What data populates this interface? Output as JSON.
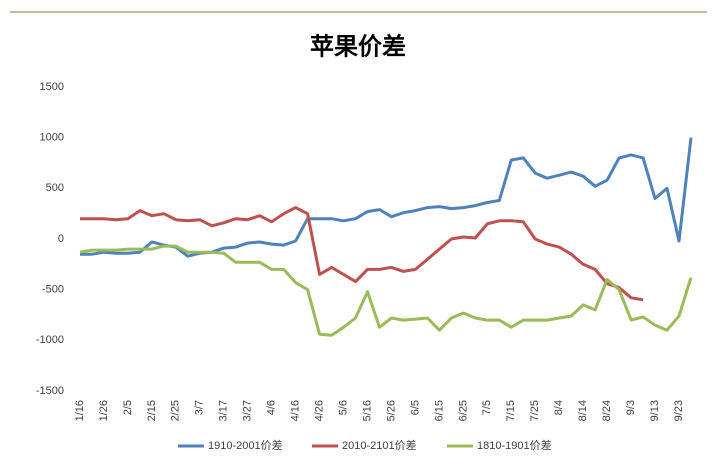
{
  "chart_data": {
    "type": "line",
    "title": "苹果价差",
    "categories": [
      "1/16",
      null,
      "1/26",
      null,
      "2/5",
      null,
      "2/15",
      null,
      "2/25",
      null,
      "3/7",
      null,
      "3/17",
      null,
      "3/27",
      null,
      "4/6",
      null,
      "4/16",
      null,
      "4/26",
      null,
      "5/6",
      null,
      "5/16",
      null,
      "5/26",
      null,
      "6/5",
      null,
      "6/15",
      null,
      "6/25",
      null,
      "7/5",
      null,
      "7/15",
      null,
      "7/25",
      null,
      "8/4",
      null,
      "8/14",
      null,
      "8/24",
      null,
      "9/3",
      null,
      "9/13",
      null,
      "9/23",
      null
    ],
    "series": [
      {
        "name": "1910-2001价差",
        "color": "#4f81bd",
        "values": [
          -150,
          -150,
          -130,
          -140,
          -140,
          -130,
          -30,
          -60,
          -80,
          -170,
          -140,
          -130,
          -90,
          -80,
          -40,
          -30,
          -50,
          -60,
          -20,
          200,
          200,
          200,
          180,
          200,
          270,
          290,
          220,
          260,
          280,
          310,
          320,
          300,
          310,
          330,
          360,
          380,
          780,
          800,
          650,
          600,
          630,
          660,
          620,
          520,
          580,
          800,
          830,
          800,
          400,
          500,
          -20,
          1000
        ]
      },
      {
        "name": "2010-2101价差",
        "color": "#c0504d",
        "values": [
          200,
          200,
          200,
          190,
          200,
          280,
          230,
          250,
          190,
          180,
          190,
          130,
          160,
          200,
          190,
          230,
          170,
          250,
          310,
          250,
          -350,
          -280,
          -350,
          -420,
          -300,
          -300,
          -280,
          -320,
          -300,
          -200,
          -100,
          0,
          20,
          10,
          150,
          180,
          180,
          170,
          0,
          -50,
          -80,
          -150,
          -250,
          -300,
          -440,
          -480,
          -580,
          -600,
          null,
          null,
          null,
          null
        ]
      },
      {
        "name": "1810-1901价差",
        "color": "#9bbb59",
        "values": [
          -130,
          -110,
          -110,
          -110,
          -100,
          -100,
          -100,
          -70,
          -70,
          -130,
          -130,
          -130,
          -140,
          -230,
          -230,
          -230,
          -300,
          -300,
          -430,
          -500,
          -940,
          -950,
          -870,
          -780,
          -520,
          -870,
          -780,
          -800,
          -790,
          -780,
          -900,
          -780,
          -730,
          -780,
          -800,
          -800,
          -870,
          -800,
          -800,
          -800,
          -780,
          -760,
          -650,
          -700,
          -400,
          -500,
          -800,
          -770,
          -850,
          -900,
          -760,
          -380
        ]
      }
    ],
    "ylim": [
      -1500,
      1500
    ],
    "yticks": [
      -1500,
      -1000,
      -500,
      0,
      500,
      1000,
      1500
    ],
    "grid": false,
    "legend": "bottom"
  }
}
